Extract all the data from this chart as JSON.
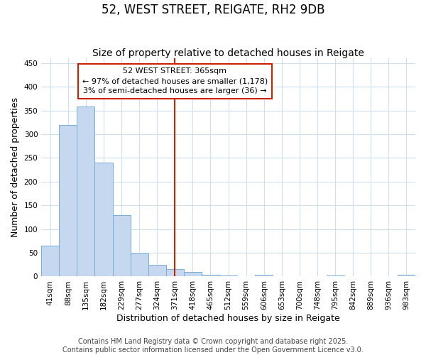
{
  "title": "52, WEST STREET, REIGATE, RH2 9DB",
  "subtitle": "Size of property relative to detached houses in Reigate",
  "xlabel": "Distribution of detached houses by size in Reigate",
  "ylabel": "Number of detached properties",
  "categories": [
    "41sqm",
    "88sqm",
    "135sqm",
    "182sqm",
    "229sqm",
    "277sqm",
    "324sqm",
    "371sqm",
    "418sqm",
    "465sqm",
    "512sqm",
    "559sqm",
    "606sqm",
    "653sqm",
    "700sqm",
    "748sqm",
    "795sqm",
    "842sqm",
    "889sqm",
    "936sqm",
    "983sqm"
  ],
  "values": [
    65,
    320,
    358,
    240,
    130,
    48,
    25,
    15,
    10,
    3,
    2,
    1,
    3,
    0,
    1,
    0,
    2,
    0,
    1,
    0,
    3
  ],
  "bar_color": "#c5d8f0",
  "bar_edge_color": "#7aadd4",
  "vline_index": 7,
  "vline_color": "#cc2200",
  "annotation_text": "52 WEST STREET: 365sqm\n← 97% of detached houses are smaller (1,178)\n3% of semi-detached houses are larger (36) →",
  "annotation_box_color": "#cc2200",
  "ylim": [
    0,
    460
  ],
  "yticks": [
    0,
    50,
    100,
    150,
    200,
    250,
    300,
    350,
    400,
    450
  ],
  "footer_line1": "Contains HM Land Registry data © Crown copyright and database right 2025.",
  "footer_line2": "Contains public sector information licensed under the Open Government Licence v3.0.",
  "background_color": "#ffffff",
  "grid_color": "#d0dff0",
  "title_fontsize": 12,
  "subtitle_fontsize": 10,
  "axis_label_fontsize": 9,
  "tick_fontsize": 7.5,
  "footer_fontsize": 7,
  "ann_fontsize": 8
}
